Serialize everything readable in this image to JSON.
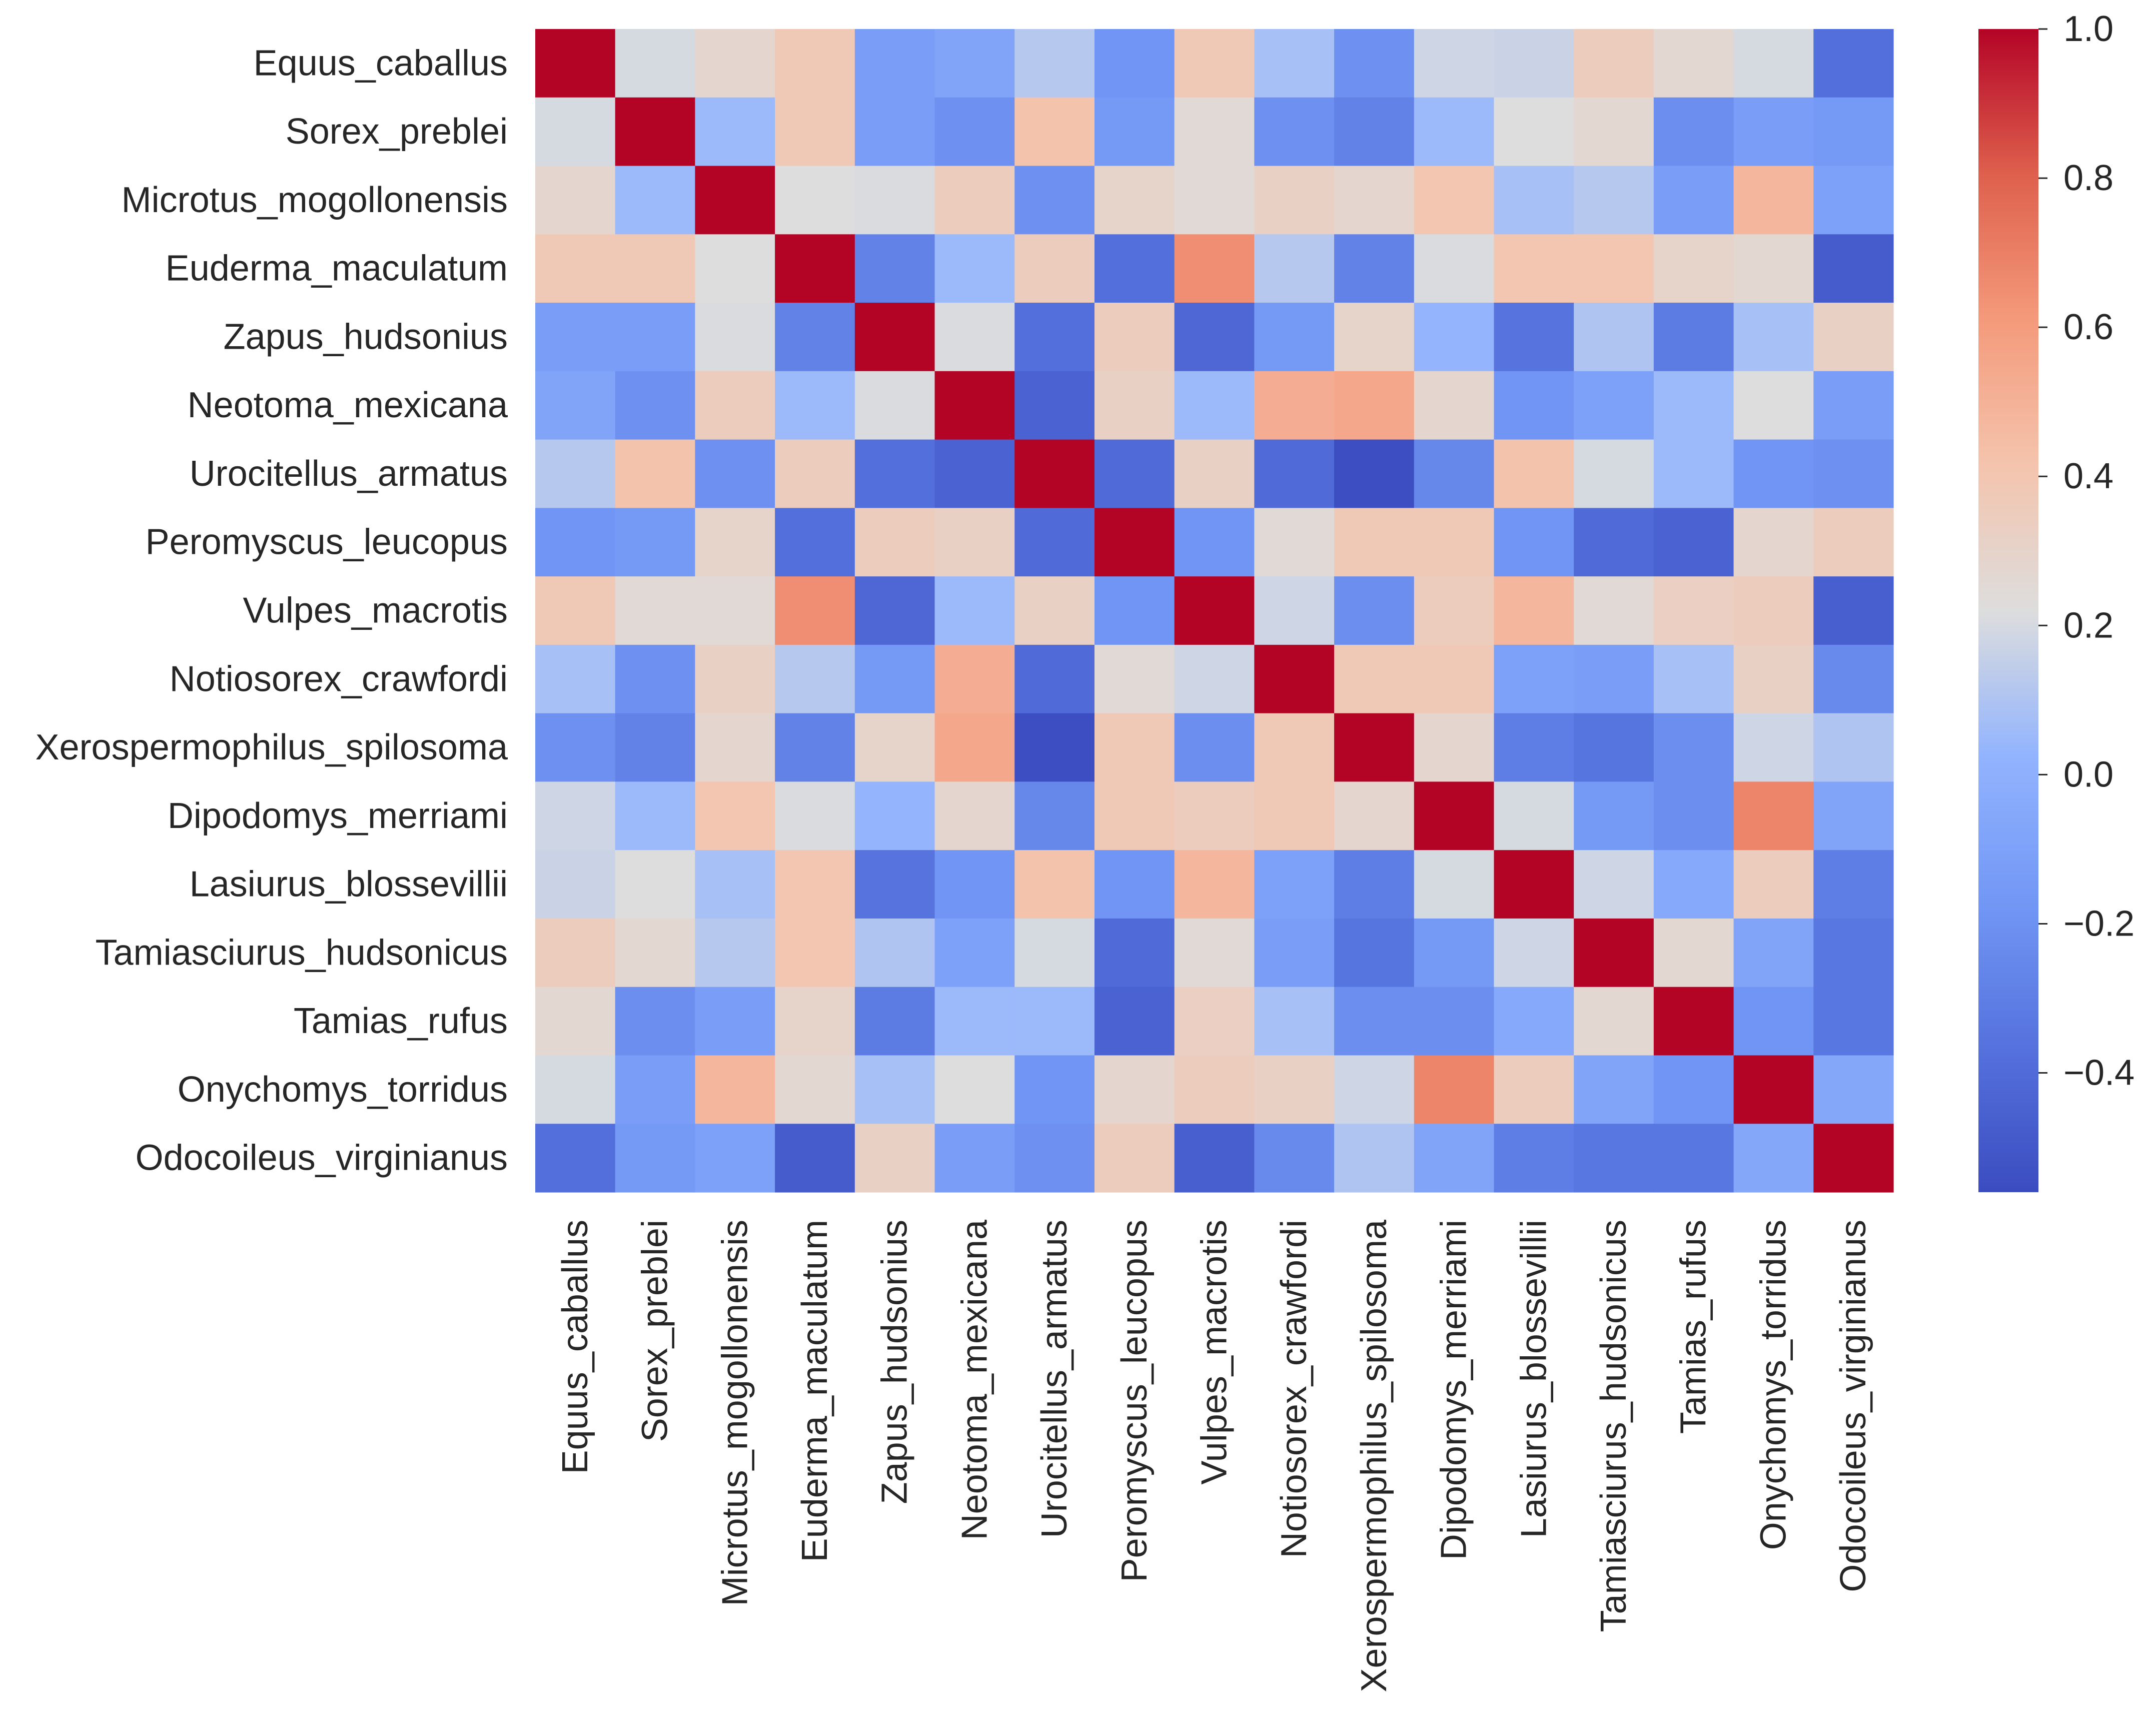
{
  "chart_data": {
    "type": "heatmap",
    "title": "",
    "xlabel": "",
    "ylabel": "",
    "labels": [
      "Equus_caballus",
      "Sorex_preblei",
      "Microtus_mogollonensis",
      "Euderma_maculatum",
      "Zapus_hudsonius",
      "Neotoma_mexicana",
      "Urocitellus_armatus",
      "Peromyscus_leucopus",
      "Vulpes_macrotis",
      "Notiosorex_crawfordi",
      "Xerospermophilus_spilosoma",
      "Dipodomys_merriami",
      "Lasiurus_blossevillii",
      "Tamiasciurus_hudsonicus",
      "Tamias_rufus",
      "Onychomys_torridus",
      "Odocoileus_virginianus"
    ],
    "values": [
      [
        1.0,
        0.2,
        0.28,
        0.38,
        -0.12,
        -0.08,
        0.12,
        -0.18,
        0.38,
        0.08,
        -0.2,
        0.18,
        0.17,
        0.35,
        0.27,
        0.2,
        -0.38
      ],
      [
        0.2,
        1.0,
        0.05,
        0.38,
        -0.12,
        -0.2,
        0.42,
        -0.15,
        0.25,
        -0.2,
        -0.28,
        0.05,
        0.22,
        0.27,
        -0.22,
        -0.12,
        -0.15
      ],
      [
        0.28,
        0.05,
        1.0,
        0.22,
        0.21,
        0.35,
        -0.2,
        0.3,
        0.25,
        0.32,
        0.28,
        0.4,
        0.08,
        0.12,
        -0.12,
        0.48,
        -0.1
      ],
      [
        0.38,
        0.38,
        0.22,
        1.0,
        -0.28,
        0.05,
        0.35,
        -0.38,
        0.65,
        0.12,
        -0.28,
        0.21,
        0.4,
        0.4,
        0.3,
        0.27,
        -0.48
      ],
      [
        -0.12,
        -0.12,
        0.21,
        -0.28,
        1.0,
        0.21,
        -0.38,
        0.35,
        -0.42,
        -0.15,
        0.3,
        0.03,
        -0.36,
        0.1,
        -0.32,
        0.08,
        0.32
      ],
      [
        -0.08,
        -0.2,
        0.35,
        0.05,
        0.21,
        1.0,
        -0.44,
        0.32,
        0.05,
        0.52,
        0.55,
        0.28,
        -0.18,
        -0.1,
        0.05,
        0.22,
        -0.12
      ],
      [
        0.12,
        0.42,
        -0.2,
        0.35,
        -0.38,
        -0.44,
        1.0,
        -0.4,
        0.32,
        -0.4,
        -0.55,
        -0.25,
        0.42,
        0.2,
        0.05,
        -0.18,
        -0.2
      ],
      [
        -0.18,
        -0.15,
        0.3,
        -0.38,
        0.35,
        0.32,
        -0.4,
        1.0,
        -0.18,
        0.25,
        0.38,
        0.38,
        -0.18,
        -0.4,
        -0.44,
        0.28,
        0.35
      ],
      [
        0.38,
        0.25,
        0.25,
        0.65,
        -0.42,
        0.05,
        0.32,
        -0.18,
        1.0,
        0.18,
        -0.22,
        0.35,
        0.48,
        0.25,
        0.33,
        0.35,
        -0.46
      ],
      [
        0.08,
        -0.2,
        0.32,
        0.12,
        -0.15,
        0.52,
        -0.4,
        0.25,
        0.18,
        1.0,
        0.38,
        0.38,
        -0.1,
        -0.12,
        0.08,
        0.32,
        -0.24
      ],
      [
        -0.2,
        -0.28,
        0.28,
        -0.28,
        0.3,
        0.55,
        -0.55,
        0.38,
        -0.22,
        0.38,
        1.0,
        0.28,
        -0.3,
        -0.35,
        -0.22,
        0.18,
        0.1
      ],
      [
        0.18,
        0.05,
        0.4,
        0.21,
        0.03,
        0.28,
        -0.25,
        0.38,
        0.35,
        0.38,
        0.28,
        1.0,
        0.2,
        -0.15,
        -0.22,
        0.68,
        -0.08
      ],
      [
        0.17,
        0.22,
        0.08,
        0.4,
        -0.36,
        -0.18,
        0.42,
        -0.18,
        0.48,
        -0.1,
        -0.3,
        0.2,
        1.0,
        0.18,
        -0.05,
        0.35,
        -0.3
      ],
      [
        0.35,
        0.27,
        0.12,
        0.4,
        0.1,
        -0.1,
        0.2,
        -0.4,
        0.25,
        -0.12,
        -0.35,
        -0.15,
        0.18,
        1.0,
        0.27,
        -0.08,
        -0.34
      ],
      [
        0.27,
        -0.22,
        -0.12,
        0.3,
        -0.32,
        0.05,
        0.05,
        -0.44,
        0.33,
        0.08,
        -0.22,
        -0.22,
        -0.05,
        0.27,
        1.0,
        -0.18,
        -0.34
      ],
      [
        0.2,
        -0.12,
        0.48,
        0.27,
        0.08,
        0.22,
        -0.18,
        0.28,
        0.35,
        0.32,
        0.18,
        0.68,
        0.35,
        -0.08,
        -0.18,
        1.0,
        -0.06
      ],
      [
        -0.38,
        -0.15,
        -0.1,
        -0.48,
        0.32,
        -0.12,
        -0.2,
        0.35,
        -0.46,
        -0.24,
        0.1,
        -0.08,
        -0.3,
        -0.34,
        -0.34,
        -0.06,
        1.0
      ]
    ],
    "colorscale": "coolwarm",
    "vmin": -0.56,
    "vmax": 1.0,
    "colorbar": {
      "ticks": [
        1.0,
        0.8,
        0.6,
        0.4,
        0.2,
        0.0,
        -0.2,
        -0.4
      ],
      "tick_labels": [
        "1.0",
        "0.8",
        "0.6",
        "0.4",
        "0.2",
        "0.0",
        "−0.2",
        "−0.4"
      ]
    },
    "grid": false,
    "legend": "colorbar-right"
  }
}
